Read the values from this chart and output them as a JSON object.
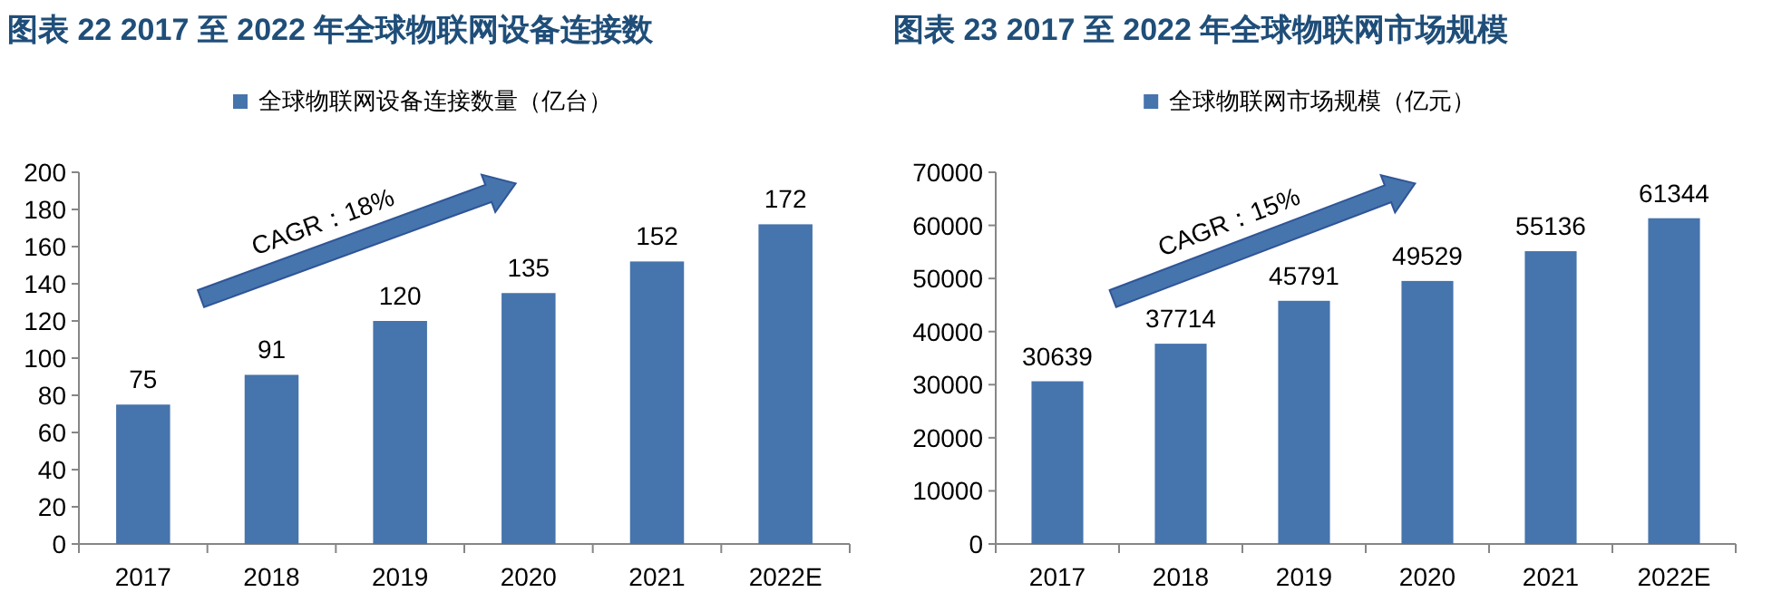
{
  "chart_data": [
    {
      "type": "bar",
      "title": "图表 22 2017 至 2022 年全球物联网设备连接数",
      "categories": [
        "2017",
        "2018",
        "2019",
        "2020",
        "2021",
        "2022E"
      ],
      "series": [
        {
          "name": "全球物联网设备连接数量（亿台）",
          "color": "#4674ac",
          "values": [
            75,
            91,
            120,
            135,
            152,
            172
          ]
        }
      ],
      "ylim": [
        0,
        200
      ],
      "yticks": [
        0,
        20,
        40,
        60,
        80,
        100,
        120,
        140,
        160,
        180,
        200
      ],
      "data_labels": true,
      "legend": "top",
      "grid": false,
      "annotations": [
        "CAGR：18%"
      ]
    },
    {
      "type": "bar",
      "title": "图表 23 2017 至 2022 年全球物联网市场规模",
      "categories": [
        "2017",
        "2018",
        "2019",
        "2020",
        "2021",
        "2022E"
      ],
      "series": [
        {
          "name": "全球物联网市场规模（亿元）",
          "color": "#4674ac",
          "values": [
            30639,
            37714,
            45791,
            49529,
            55136,
            61344
          ]
        }
      ],
      "ylim": [
        0,
        70000
      ],
      "yticks": [
        0,
        10000,
        20000,
        30000,
        40000,
        50000,
        60000,
        70000
      ],
      "data_labels": true,
      "legend": "top",
      "grid": false,
      "annotations": [
        "CAGR：15%"
      ]
    }
  ]
}
